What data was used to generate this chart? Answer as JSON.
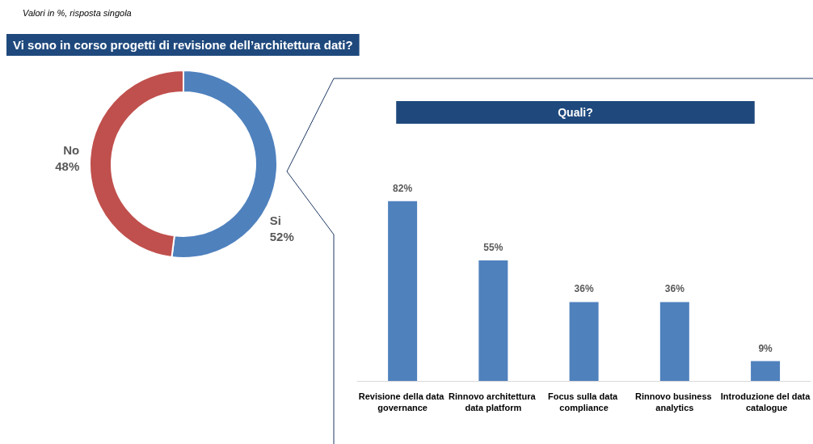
{
  "chart_data": [
    {
      "type": "donut",
      "title": "Vi sono in corso progetti di revisione dell’architettura dati?",
      "annotations": [
        "Valori in %, risposta singola"
      ],
      "categories": [
        "Si",
        "No"
      ],
      "values": [
        52,
        48
      ],
      "colors": [
        "#4f81bd",
        "#c0504d"
      ],
      "value_labels": [
        "52%",
        "48%"
      ],
      "legend": false
    },
    {
      "type": "bar",
      "title": "Quali?",
      "categories": [
        "Revisione della data governance",
        "Rinnovo architettura data platform",
        "Focus sulla data compliance",
        "Rinnovo business analytics",
        "Introduzione del data catalogue"
      ],
      "values": [
        82,
        55,
        36,
        36,
        9
      ],
      "color": "#4f81bd",
      "value_labels": [
        "82%",
        "55%",
        "36%",
        "36%",
        "9%"
      ],
      "legend": false
    }
  ]
}
